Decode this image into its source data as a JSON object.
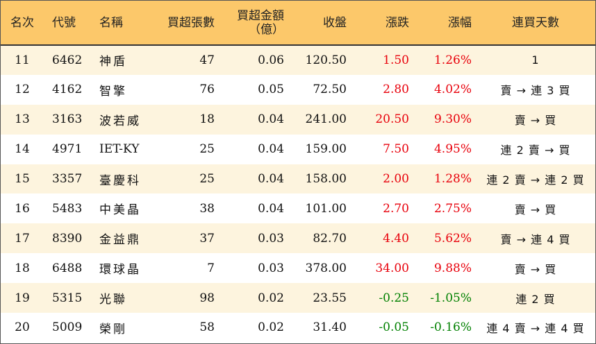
{
  "colors": {
    "header_bg": "#fcc86a",
    "row_alt_bg": "#fdf4de",
    "up": "#e8000b",
    "down": "#008000"
  },
  "headers": {
    "rank": "名次",
    "code": "代號",
    "name": "名稱",
    "net_buy_lots": "買超張數",
    "net_buy_amount": "買超金額\n（億）",
    "close": "收盤",
    "change": "漲跌",
    "change_pct": "漲幅",
    "streak": "連買天數"
  },
  "rows": [
    {
      "rank": "11",
      "code": "6462",
      "name": "神盾",
      "lots": "47",
      "amount": "0.06",
      "close": "120.50",
      "change": "1.50",
      "pct": "1.26%",
      "streak": "1",
      "dir": "up"
    },
    {
      "rank": "12",
      "code": "4162",
      "name": "智擎",
      "lots": "76",
      "amount": "0.05",
      "close": "72.50",
      "change": "2.80",
      "pct": "4.02%",
      "streak": "賣 → 連 3 買",
      "dir": "up"
    },
    {
      "rank": "13",
      "code": "3163",
      "name": "波若威",
      "lots": "18",
      "amount": "0.04",
      "close": "241.00",
      "change": "20.50",
      "pct": "9.30%",
      "streak": "賣 → 買",
      "dir": "up"
    },
    {
      "rank": "14",
      "code": "4971",
      "name": "IET-KY",
      "lots": "25",
      "amount": "0.04",
      "close": "159.00",
      "change": "7.50",
      "pct": "4.95%",
      "streak": "連 2 賣 → 買",
      "dir": "up"
    },
    {
      "rank": "15",
      "code": "3357",
      "name": "臺慶科",
      "lots": "25",
      "amount": "0.04",
      "close": "158.00",
      "change": "2.00",
      "pct": "1.28%",
      "streak": "連 2 賣 → 連 2 買",
      "dir": "up"
    },
    {
      "rank": "16",
      "code": "5483",
      "name": "中美晶",
      "lots": "38",
      "amount": "0.04",
      "close": "101.00",
      "change": "2.70",
      "pct": "2.75%",
      "streak": "賣 → 買",
      "dir": "up"
    },
    {
      "rank": "17",
      "code": "8390",
      "name": "金益鼎",
      "lots": "37",
      "amount": "0.03",
      "close": "82.70",
      "change": "4.40",
      "pct": "5.62%",
      "streak": "賣 → 連 4 買",
      "dir": "up"
    },
    {
      "rank": "18",
      "code": "6488",
      "name": "環球晶",
      "lots": "7",
      "amount": "0.03",
      "close": "378.00",
      "change": "34.00",
      "pct": "9.88%",
      "streak": "賣 → 買",
      "dir": "up"
    },
    {
      "rank": "19",
      "code": "5315",
      "name": "光聯",
      "lots": "98",
      "amount": "0.02",
      "close": "23.55",
      "change": "-0.25",
      "pct": "-1.05%",
      "streak": "連 2 買",
      "dir": "down"
    },
    {
      "rank": "20",
      "code": "5009",
      "name": "榮剛",
      "lots": "58",
      "amount": "0.02",
      "close": "31.40",
      "change": "-0.05",
      "pct": "-0.16%",
      "streak": "連 4 賣 → 連 4 買",
      "dir": "down"
    }
  ]
}
